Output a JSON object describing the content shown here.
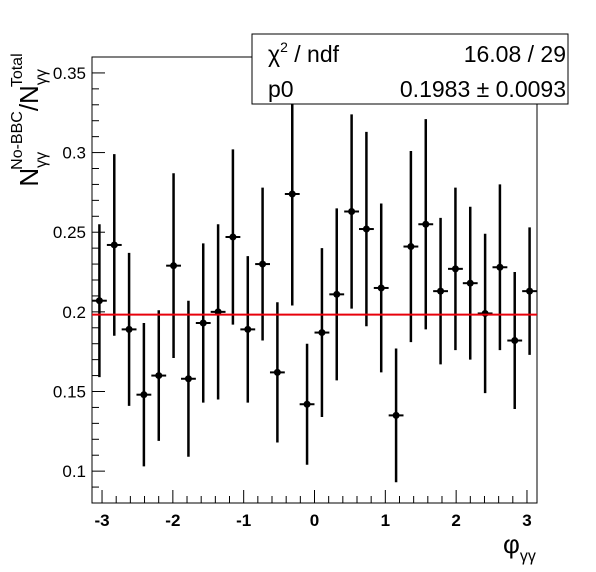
{
  "chart_data": {
    "type": "scatter",
    "title": "",
    "xlabel_main": "φ",
    "xlabel_sub": "γγ",
    "ylabel": {
      "main": "N",
      "sub": "γγ",
      "sup": "No-BBC",
      "sep": "/",
      "main2": "N",
      "sub2": "γγ",
      "sup2": "Total"
    },
    "xlim": [
      -3.1416,
      3.1416
    ],
    "ylim": [
      0.08,
      0.36
    ],
    "x_ticks": [
      -3,
      -2,
      -1,
      0,
      1,
      2,
      3
    ],
    "x_tick_labels": [
      "-3",
      "-2",
      "-1",
      "0",
      "1",
      "2",
      "3"
    ],
    "y_ticks": [
      0.1,
      0.15,
      0.2,
      0.25,
      0.3,
      0.35
    ],
    "y_tick_labels": [
      "0.1",
      "0.15",
      "0.2",
      "0.25",
      "0.3",
      "0.35"
    ],
    "grid": false,
    "points": [
      {
        "x": -3.037,
        "y": 0.207,
        "err": 0.048
      },
      {
        "x": -2.827,
        "y": 0.242,
        "err": 0.057
      },
      {
        "x": -2.618,
        "y": 0.189,
        "err": 0.048
      },
      {
        "x": -2.409,
        "y": 0.148,
        "err": 0.045
      },
      {
        "x": -2.199,
        "y": 0.16,
        "err": 0.041
      },
      {
        "x": -1.99,
        "y": 0.229,
        "err": 0.058
      },
      {
        "x": -1.78,
        "y": 0.158,
        "err": 0.049
      },
      {
        "x": -1.571,
        "y": 0.193,
        "err": 0.05
      },
      {
        "x": -1.361,
        "y": 0.2,
        "err": 0.055
      },
      {
        "x": -1.152,
        "y": 0.247,
        "err": 0.055
      },
      {
        "x": -0.942,
        "y": 0.189,
        "err": 0.046
      },
      {
        "x": -0.733,
        "y": 0.23,
        "err": 0.048
      },
      {
        "x": -0.524,
        "y": 0.162,
        "err": 0.044
      },
      {
        "x": -0.314,
        "y": 0.274,
        "err": 0.07
      },
      {
        "x": -0.105,
        "y": 0.142,
        "err": 0.038
      },
      {
        "x": 0.105,
        "y": 0.187,
        "err": 0.053
      },
      {
        "x": 0.314,
        "y": 0.211,
        "err": 0.054
      },
      {
        "x": 0.524,
        "y": 0.263,
        "err": 0.061
      },
      {
        "x": 0.733,
        "y": 0.252,
        "err": 0.061
      },
      {
        "x": 0.942,
        "y": 0.215,
        "err": 0.053
      },
      {
        "x": 1.152,
        "y": 0.135,
        "err": 0.042
      },
      {
        "x": 1.361,
        "y": 0.241,
        "err": 0.06
      },
      {
        "x": 1.571,
        "y": 0.255,
        "err": 0.066
      },
      {
        "x": 1.78,
        "y": 0.213,
        "err": 0.046
      },
      {
        "x": 1.99,
        "y": 0.227,
        "err": 0.051
      },
      {
        "x": 2.199,
        "y": 0.218,
        "err": 0.048
      },
      {
        "x": 2.409,
        "y": 0.199,
        "err": 0.05
      },
      {
        "x": 2.618,
        "y": 0.228,
        "err": 0.052
      },
      {
        "x": 2.827,
        "y": 0.182,
        "err": 0.043
      },
      {
        "x": 3.037,
        "y": 0.213,
        "err": 0.04
      }
    ],
    "fit": {
      "type": "constant",
      "p0": 0.1983,
      "color": "#e8000b"
    },
    "stats_box": {
      "placement": "top-right",
      "row1_label_pre": "χ",
      "row1_label_sup": "2",
      "row1_label_post": " / ndf",
      "row1_value": "16.08 / 29",
      "row2_label": "p0",
      "row2_value": "0.1983 ± 0.0093"
    },
    "marker_color": "#000000"
  }
}
